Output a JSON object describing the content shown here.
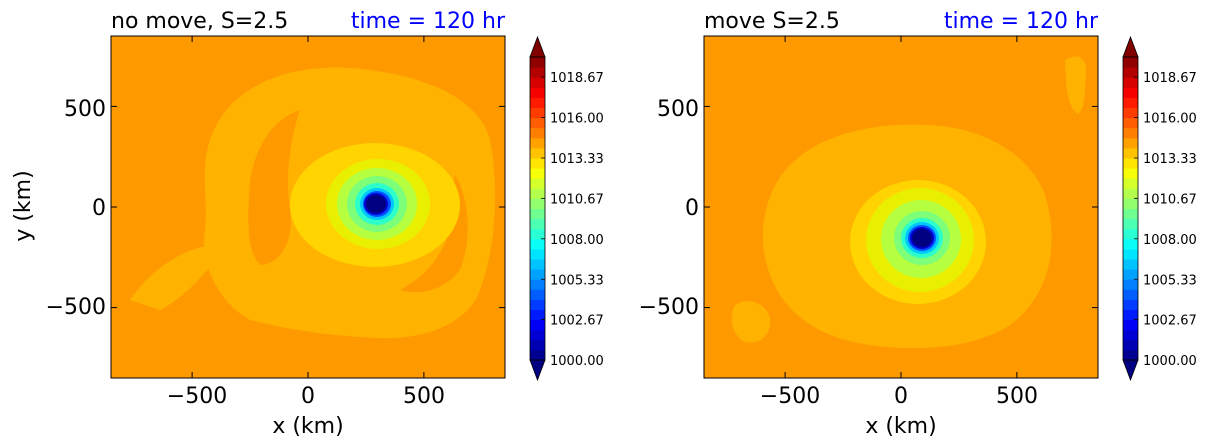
{
  "chart_data": [
    {
      "type": "heatmap",
      "title": "no move, S=2.5",
      "title_right": "time = 120 hr",
      "title_right_color": "#0000ff",
      "xlabel": "x (km)",
      "ylabel": "y (km)",
      "xlim": [
        -850,
        850
      ],
      "ylim": [
        -850,
        850
      ],
      "xticks": [
        -500,
        0,
        500
      ],
      "yticks": [
        -500,
        0,
        500
      ],
      "xtick_labels": [
        "−500",
        "0",
        "500"
      ],
      "ytick_labels": [
        "−500",
        "0",
        "500"
      ],
      "ambient_value": 1015.5,
      "center": {
        "x": 285,
        "y": 15,
        "value": 1000.0
      },
      "colorbar": {
        "min": 1000.0,
        "max": 1020.0,
        "extend": "both",
        "tick_values": [
          1000.0,
          1002.67,
          1005.33,
          1008.0,
          1010.67,
          1013.33,
          1016.0,
          1018.67
        ],
        "tick_labels": [
          "1000.00",
          "1002.67",
          "1005.33",
          "1008.00",
          "1010.67",
          "1013.33",
          "1016.00",
          "1018.67"
        ]
      }
    },
    {
      "type": "heatmap",
      "title": "move S=2.5",
      "title_right": "time = 120 hr",
      "title_right_color": "#0000ff",
      "xlabel": "x (km)",
      "ylabel": "",
      "xlim": [
        -850,
        850
      ],
      "ylim": [
        -850,
        850
      ],
      "xticks": [
        -500,
        0,
        500
      ],
      "yticks": [
        -500,
        0,
        500
      ],
      "xtick_labels": [
        "−500",
        "0",
        "500"
      ],
      "ytick_labels": [
        "−500",
        "0",
        "500"
      ],
      "ambient_value": 1015.5,
      "center": {
        "x": 110,
        "y": -160,
        "value": 1000.0
      },
      "colorbar": {
        "min": 1000.0,
        "max": 1020.0,
        "extend": "both",
        "tick_values": [
          1000.0,
          1002.67,
          1005.33,
          1008.0,
          1010.67,
          1013.33,
          1016.0,
          1018.67
        ],
        "tick_labels": [
          "1000.00",
          "1002.67",
          "1005.33",
          "1008.00",
          "1010.67",
          "1013.33",
          "1016.00",
          "1018.67"
        ]
      }
    }
  ]
}
